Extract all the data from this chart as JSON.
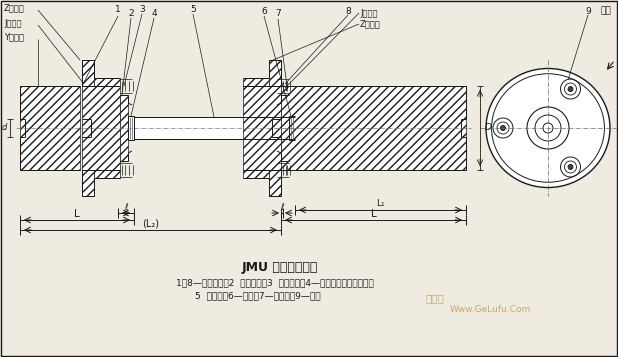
{
  "title": "JMU 型膜片联轴器",
  "caption_line1": "1、8—半联轴器；2  扣紧螺母；3  六角螺母；4—六角头撕制孔用螺栓；",
  "caption_line2": "5  中间轴；6—隔圈；7—支承圈；9—膜片",
  "bg_color": "#f0ebe0",
  "line_color": "#1a1a1a",
  "lbl_Z_shaft": "Z型轴孔",
  "lbl_J_shaft": "J型轴孔",
  "lbl_Y_shaft": "Y型轴孔",
  "lbl_J_shaft_r": "J型轴孔",
  "lbl_Z_shaft_r": "Z型轴孔",
  "lbl_bz": "标志",
  "watermark1": "大机械",
  "watermark2": "Www.GeLufu.Com",
  "nums": [
    "1",
    "2",
    "3",
    "4",
    "5",
    "6",
    "7",
    "8",
    "9"
  ]
}
